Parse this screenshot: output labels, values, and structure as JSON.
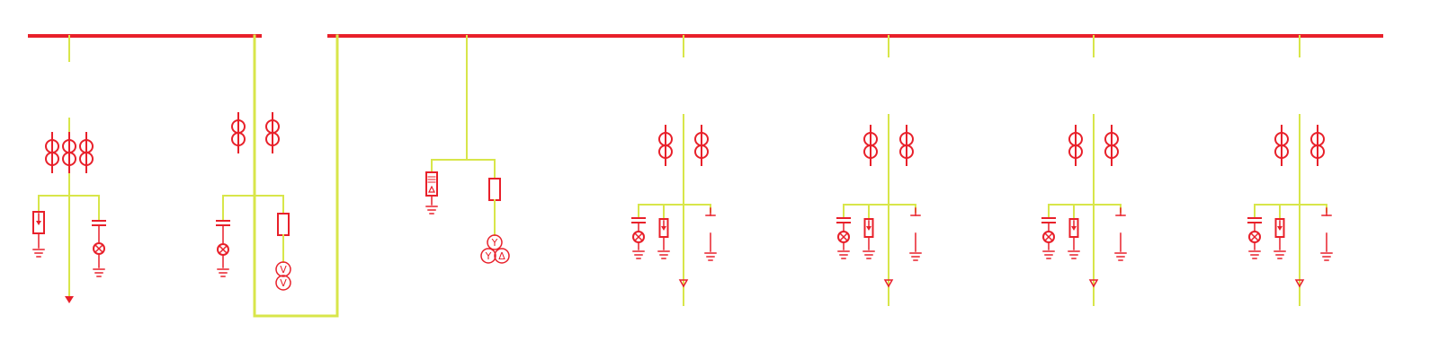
{
  "diagram": {
    "type": "single-line-electrical",
    "colors": {
      "busbar": "#e8202a",
      "feeder": "#d8e64a",
      "symbol": "#e8202a",
      "background": "#ffffff"
    },
    "busbars": [
      {
        "name": "busbar-section-1"
      },
      {
        "name": "busbar-section-2"
      }
    ],
    "bays": [
      {
        "name": "incoming-feeder-bay",
        "kind": "incoming",
        "ct_count": 3
      },
      {
        "name": "bus-coupler-bay",
        "kind": "coupler",
        "ct_count": 2
      },
      {
        "name": "pt-bay",
        "kind": "voltage-transformer",
        "transformer_symbols": [
          "Y",
          "Y",
          "Δ"
        ]
      },
      {
        "name": "outgoing-feeder-bay-1",
        "kind": "outgoing",
        "ct_count": 2
      },
      {
        "name": "outgoing-feeder-bay-2",
        "kind": "outgoing",
        "ct_count": 2
      },
      {
        "name": "outgoing-feeder-bay-3",
        "kind": "outgoing",
        "ct_count": 2
      },
      {
        "name": "outgoing-feeder-bay-4",
        "kind": "outgoing",
        "ct_count": 2
      }
    ],
    "coupler_transformer_symbols": [
      "V",
      "V"
    ],
    "icons": [
      "current-transformer-icon",
      "surge-arrester-icon",
      "fuse-icon",
      "capacitor-icon",
      "indicator-lamp-icon",
      "ground-icon",
      "cable-termination-icon"
    ]
  }
}
